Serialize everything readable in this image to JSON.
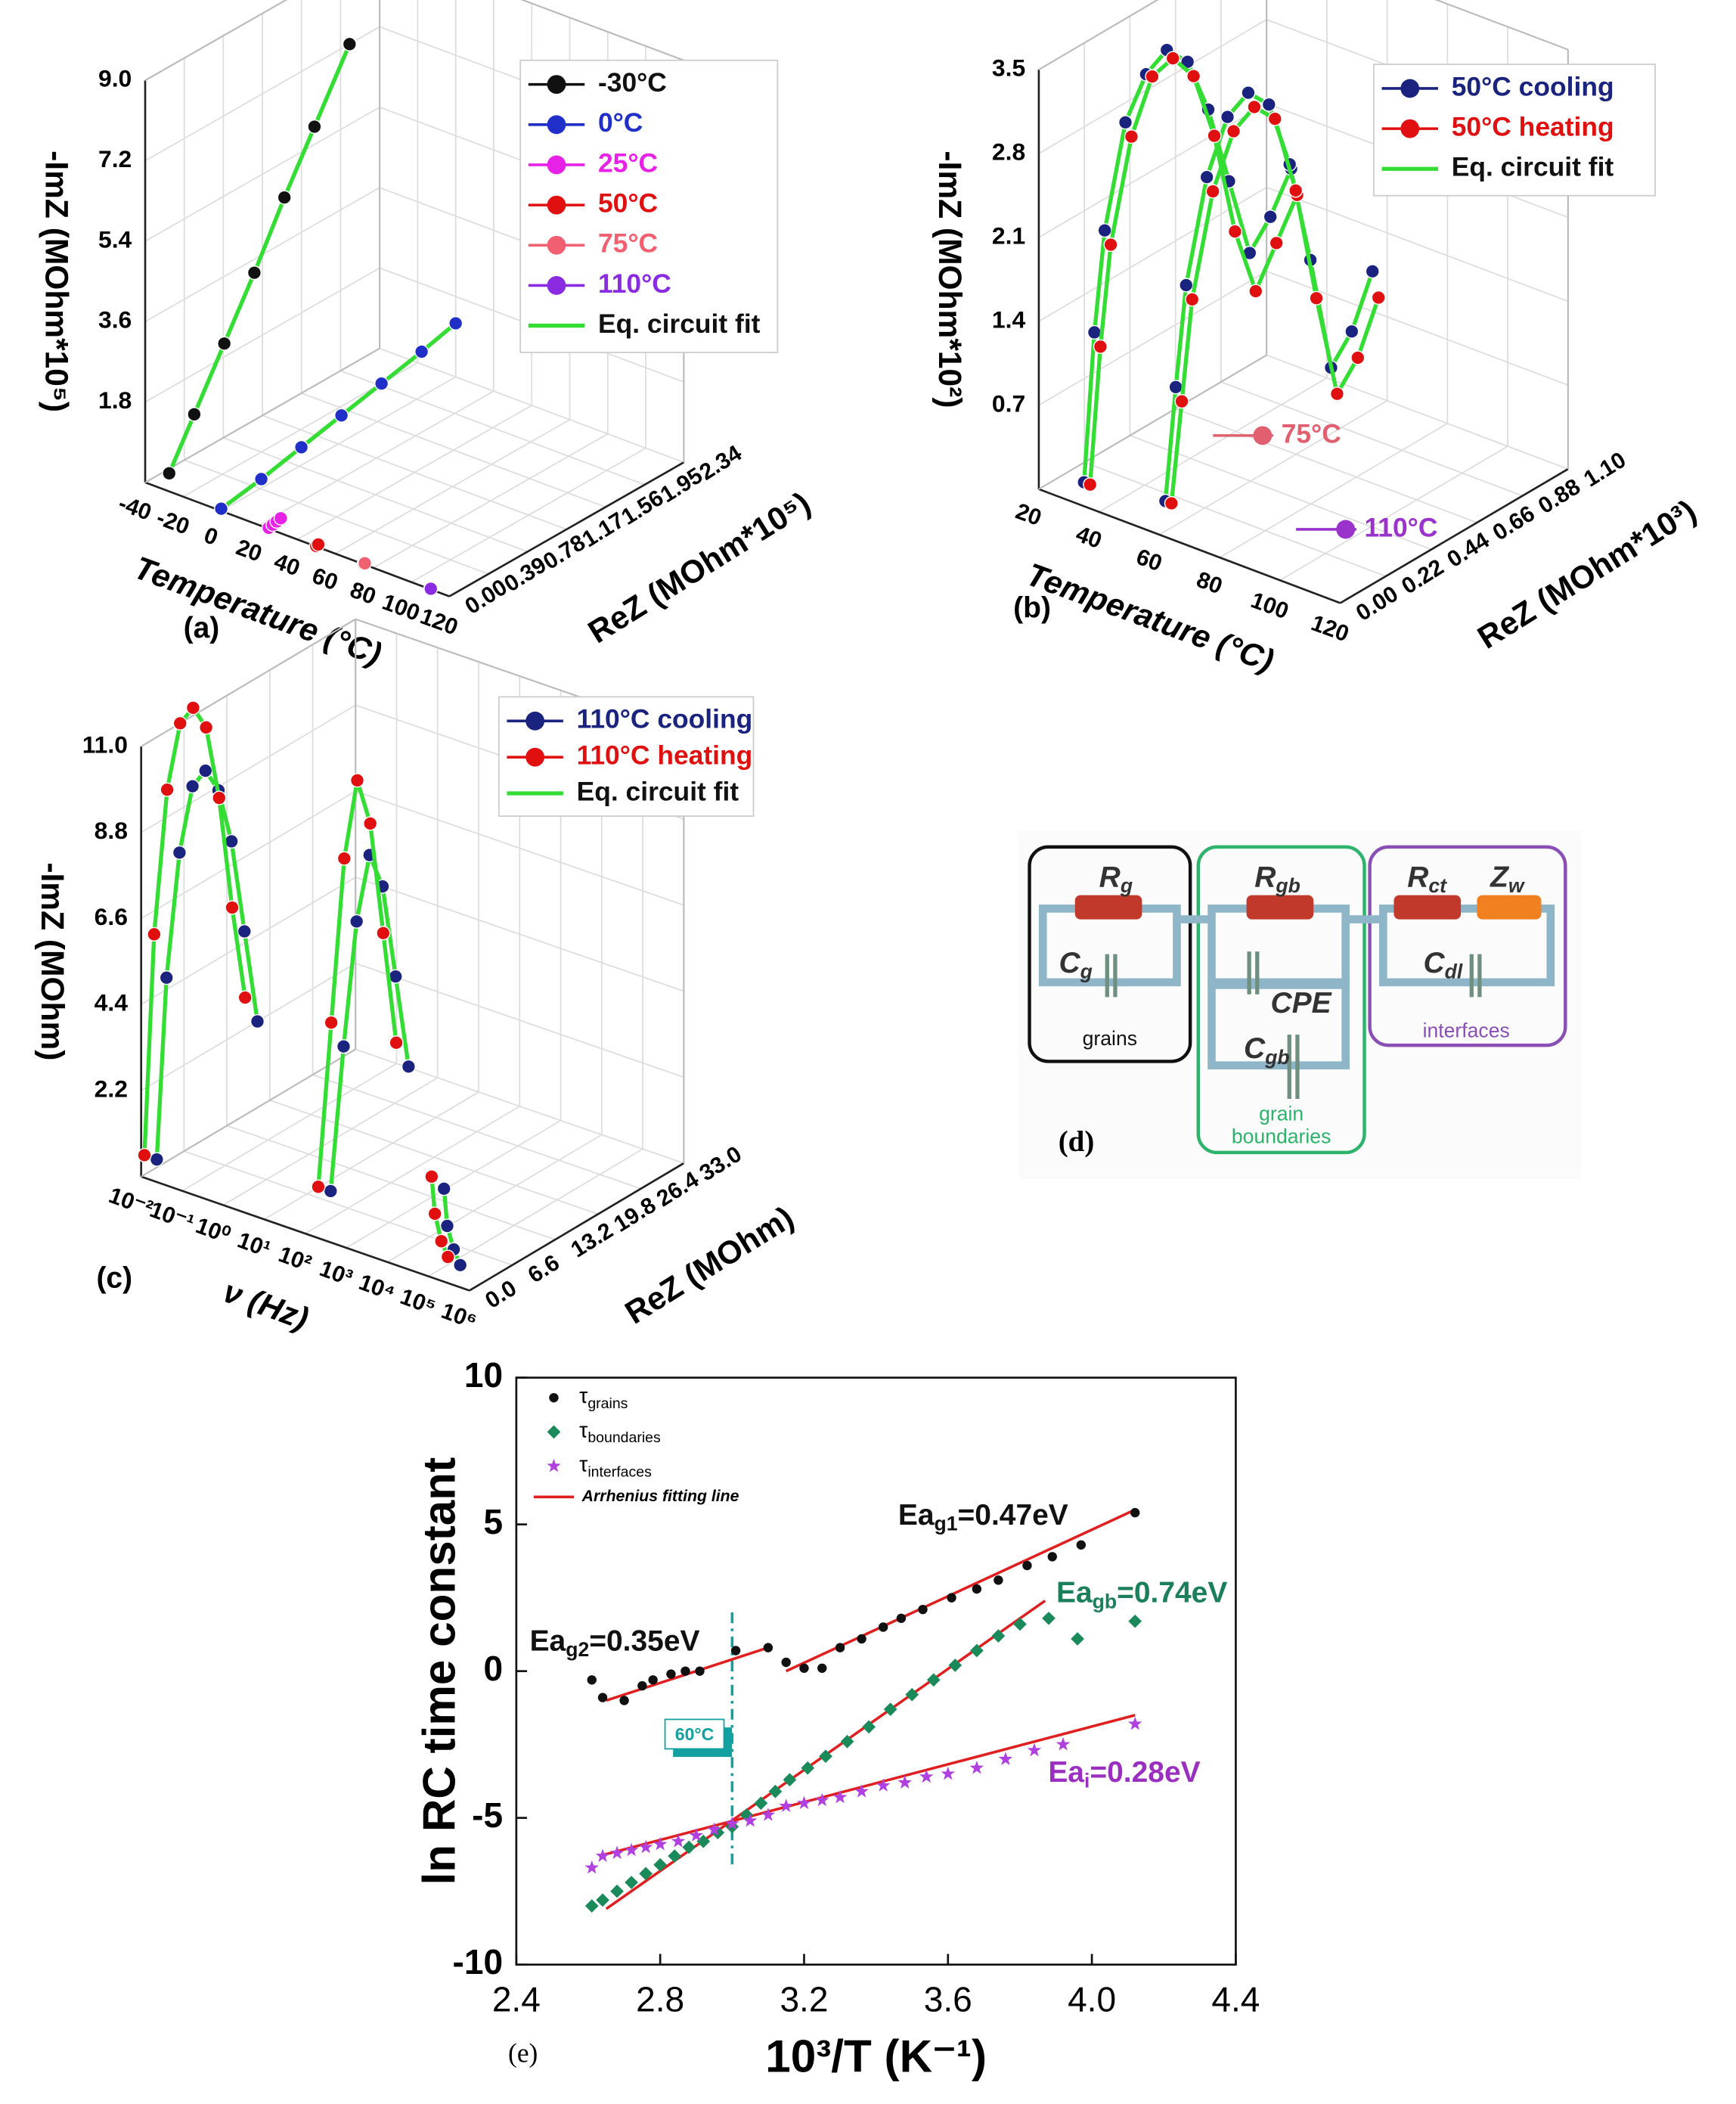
{
  "chart_data": [
    {
      "type": "scatter3d",
      "label": "(a)",
      "xlabel": "Temperature (°C)",
      "ylabel": "ReZ (MOhm*10⁵)",
      "zlabel": "-ImZ (MOhm*10⁵)",
      "xlim": [
        -40,
        120
      ],
      "xticks": [
        -40,
        -20,
        0,
        20,
        40,
        60,
        80,
        100,
        120
      ],
      "ylim": [
        0,
        2.34
      ],
      "yticks": [
        {
          "value": 0,
          "label": "0.00"
        },
        0.39,
        0.78,
        1.17,
        1.56,
        1.95,
        2.34
      ],
      "zlim": [
        0,
        9
      ],
      "zticks": [
        1.8,
        3.6,
        5.4,
        7.2,
        {
          "value": 9,
          "label": "9.0"
        }
      ],
      "series": [
        {
          "name": "-30°C",
          "color": "#111111",
          "x": [
            -30,
            -30,
            -30,
            -30,
            -30,
            -30,
            -30
          ],
          "y": [
            0.05,
            0.3,
            0.6,
            0.9,
            1.2,
            1.5,
            1.85
          ],
          "values": [
            0.3,
            1.3,
            2.5,
            3.7,
            5.0,
            6.2,
            7.6
          ]
        },
        {
          "name": "0°C",
          "color": "#1f2fc8",
          "x": [
            0,
            0,
            0,
            0,
            0,
            0,
            0
          ],
          "y": [
            0,
            0.4,
            0.8,
            1.2,
            1.6,
            2.0,
            2.34
          ],
          "values": [
            0.05,
            0.2,
            0.4,
            0.6,
            0.8,
            1.0,
            1.2
          ]
        },
        {
          "name": "25°C",
          "color": "#e622e6",
          "x": [
            25,
            25,
            25,
            25
          ],
          "y": [
            0,
            0.04,
            0.08,
            0.12
          ],
          "values": [
            0.02,
            0.04,
            0.06,
            0.08
          ]
        },
        {
          "name": "50°C",
          "color": "#e01010",
          "x": [
            50,
            50
          ],
          "y": [
            0,
            0.02
          ],
          "values": [
            0.01,
            0.02
          ]
        },
        {
          "name": "75°C",
          "color": "#f06070",
          "x": [
            75,
            75
          ],
          "y": [
            0,
            0.01
          ],
          "values": [
            0.005,
            0.01
          ]
        },
        {
          "name": "110°C",
          "color": "#8a2be2",
          "x": [
            110,
            110
          ],
          "y": [
            0,
            0.005
          ],
          "values": [
            0.002,
            0.004
          ]
        }
      ],
      "fit": {
        "name": "Eq. circuit fit",
        "color": "#33dd33"
      }
    },
    {
      "type": "scatter3d",
      "label": "(b)",
      "xlabel": "Temperature (°C)",
      "ylabel": "ReZ (MOhm*10³)",
      "zlabel": "-ImZ (MOhm*10²)",
      "xlim": [
        20,
        120
      ],
      "xticks": [
        20,
        40,
        60,
        80,
        100,
        120
      ],
      "ylim": [
        0,
        1.1
      ],
      "yticks": [
        {
          "value": 0,
          "label": "0.00"
        },
        0.22,
        0.44,
        0.66,
        0.88,
        {
          "value": 1.1,
          "label": "1.10"
        }
      ],
      "zlim": [
        0,
        3.5
      ],
      "zticks": [
        0.7,
        1.4,
        2.1,
        2.8,
        3.5
      ],
      "series": [
        {
          "name": "50°C cooling",
          "color": "#1a237e",
          "x": [
            35,
            35,
            35,
            35,
            35,
            35,
            35,
            35,
            35,
            35,
            35,
            35,
            null,
            62,
            62,
            62,
            62,
            62,
            62,
            62,
            62,
            62,
            62,
            62,
            62
          ],
          "y": [
            0,
            0.05,
            0.1,
            0.2,
            0.3,
            0.4,
            0.5,
            0.6,
            0.7,
            0.8,
            0.9,
            1.0,
            null,
            0,
            0.05,
            0.1,
            0.2,
            0.3,
            0.4,
            0.5,
            0.6,
            0.7,
            0.8,
            0.9,
            1.0
          ],
          "values": [
            0.2,
            1.4,
            2.2,
            3.0,
            3.3,
            3.4,
            3.2,
            2.7,
            2.0,
            1.3,
            1.5,
            1.8,
            null,
            0.3,
            1.2,
            2.0,
            2.8,
            3.2,
            3.3,
            3.1,
            2.5,
            1.6,
            0.6,
            0.8,
            1.2
          ]
        },
        {
          "name": "50°C heating",
          "color": "#e01010",
          "x": [
            37,
            37,
            37,
            37,
            37,
            37,
            37,
            37,
            37,
            37,
            37,
            37,
            null,
            64,
            64,
            64,
            64,
            64,
            64,
            64,
            64,
            64,
            64,
            64,
            64
          ],
          "y": [
            0,
            0.05,
            0.1,
            0.2,
            0.3,
            0.4,
            0.5,
            0.6,
            0.7,
            0.8,
            0.9,
            1.0,
            null,
            0,
            0.05,
            0.1,
            0.2,
            0.3,
            0.4,
            0.5,
            0.6,
            0.7,
            0.8,
            0.9,
            1.0
          ],
          "values": [
            0.2,
            1.3,
            2.1,
            2.9,
            3.3,
            3.35,
            3.1,
            2.5,
            1.6,
            1.0,
            1.3,
            1.6,
            null,
            0.3,
            1.1,
            1.9,
            2.7,
            3.1,
            3.2,
            3.0,
            2.3,
            1.3,
            0.4,
            0.6,
            1.0
          ]
        }
      ],
      "fit": {
        "name": "Eq. circuit fit",
        "color": "#33dd33"
      },
      "annotations": [
        {
          "text": "75°C",
          "color": "#e06070"
        },
        {
          "text": "110°C",
          "color": "#9933cc"
        }
      ]
    },
    {
      "type": "scatter3d",
      "label": "(c)",
      "xlabel": "ν (Hz)",
      "ylabel": "ReZ (MOhm)",
      "zlabel": "-ImZ (MOhm)",
      "xscale": "log",
      "xlim": [
        0.01,
        1000000
      ],
      "xticks": [
        {
          "value": 0.01,
          "label": "10⁻²"
        },
        {
          "value": 0.1,
          "label": "10⁻¹"
        },
        {
          "value": 1,
          "label": "10⁰"
        },
        {
          "value": 10,
          "label": "10¹"
        },
        {
          "value": 100,
          "label": "10²"
        },
        {
          "value": 1000,
          "label": "10³"
        },
        {
          "value": 10000,
          "label": "10⁴"
        },
        {
          "value": 100000,
          "label": "10⁵"
        },
        {
          "value": 1000000,
          "label": "10⁶"
        }
      ],
      "ylim": [
        0,
        33
      ],
      "yticks": [
        {
          "value": 0,
          "label": "0.0"
        },
        6.6,
        13.2,
        19.8,
        26.4,
        {
          "value": 33,
          "label": "33.0"
        }
      ],
      "zlim": [
        0,
        11
      ],
      "zticks": [
        2.2,
        4.4,
        6.6,
        8.8,
        {
          "value": 11,
          "label": "11.0"
        }
      ],
      "series": [
        {
          "name": "110°C cooling",
          "color": "#1a237e",
          "x": [
            0.02,
            0.02,
            0.02,
            0.02,
            0.02,
            0.02,
            0.02,
            0.02,
            0.02,
            null,
            200,
            200,
            200,
            200,
            200,
            200,
            200,
            null,
            200000,
            200000,
            200000,
            200000
          ],
          "y": [
            0.5,
            2,
            4,
            6,
            8,
            10,
            12,
            14,
            16,
            null,
            2,
            4,
            6,
            8,
            10,
            12,
            14,
            null,
            0.5,
            1,
            2,
            3
          ],
          "values": [
            0.5,
            5,
            8,
            9.5,
            9.7,
            9,
            7.5,
            5,
            2.5,
            null,
            1,
            4.5,
            7.5,
            9,
            8,
            5.5,
            3,
            null,
            2.3,
            1.3,
            0.6,
            0.1
          ]
        },
        {
          "name": "110°C heating",
          "color": "#e01010",
          "x": [
            0.01,
            0.01,
            0.01,
            0.01,
            0.01,
            0.01,
            0.01,
            0.01,
            0.01,
            null,
            100,
            100,
            100,
            100,
            100,
            100,
            100,
            null,
            100000,
            100000,
            100000,
            100000
          ],
          "y": [
            0.5,
            2,
            4,
            6,
            8,
            10,
            12,
            14,
            16,
            null,
            2,
            4,
            6,
            8,
            10,
            12,
            14,
            null,
            0.5,
            1,
            2,
            3
          ],
          "values": [
            0.5,
            6,
            9.5,
            11,
            11.2,
            10.5,
            8.5,
            5.5,
            3,
            null,
            1,
            5,
            9,
            10.8,
            9.5,
            6.5,
            3.5,
            null,
            2.5,
            1.5,
            0.7,
            0.2
          ]
        }
      ],
      "fit": {
        "name": "Eq. circuit fit",
        "color": "#33dd33"
      }
    },
    {
      "type": "scatter",
      "label": "(e)",
      "xlabel": "10³/T (K⁻¹)",
      "ylabel": "ln RC time constant",
      "xlim": [
        2.4,
        4.4
      ],
      "xticks": [
        2.4,
        2.8,
        3.2,
        3.6,
        {
          "value": 4,
          "label": "4.0"
        },
        4.4
      ],
      "ylim": [
        -10,
        10
      ],
      "yticks": [
        -10,
        -5,
        0,
        5,
        10
      ],
      "series": [
        {
          "name": "τ",
          "sub": "grains",
          "marker": "circle",
          "color": "#111111",
          "x": [
            2.61,
            2.64,
            2.7,
            2.75,
            2.78,
            2.83,
            2.87,
            2.91,
            3.01,
            3.1,
            3.15,
            3.2,
            3.25,
            3.3,
            3.36,
            3.42,
            3.47,
            3.53,
            3.61,
            3.68,
            3.74,
            3.82,
            3.89,
            3.97,
            4.12
          ],
          "values": [
            -0.3,
            -0.9,
            -1.0,
            -0.5,
            -0.3,
            -0.1,
            0.0,
            0.0,
            0.7,
            0.8,
            0.3,
            0.1,
            0.1,
            0.8,
            1.1,
            1.5,
            1.8,
            2.1,
            2.5,
            2.8,
            3.1,
            3.6,
            3.9,
            4.3,
            5.4
          ]
        },
        {
          "name": "τ",
          "sub": "boundaries",
          "marker": "diamond",
          "color": "#1a8a5a",
          "x": [
            2.61,
            2.64,
            2.68,
            2.72,
            2.76,
            2.8,
            2.84,
            2.88,
            2.92,
            2.96,
            3.0,
            3.04,
            3.08,
            3.12,
            3.16,
            3.21,
            3.26,
            3.32,
            3.38,
            3.44,
            3.5,
            3.56,
            3.62,
            3.68,
            3.74,
            3.8,
            3.88,
            3.96,
            4.12
          ],
          "values": [
            -8.0,
            -7.8,
            -7.5,
            -7.2,
            -6.9,
            -6.6,
            -6.3,
            -6.0,
            -5.8,
            -5.5,
            -5.3,
            -4.9,
            -4.5,
            -4.1,
            -3.7,
            -3.3,
            -2.9,
            -2.4,
            -1.9,
            -1.3,
            -0.8,
            -0.3,
            0.2,
            0.7,
            1.2,
            1.6,
            1.8,
            1.1,
            1.7
          ]
        },
        {
          "name": "τ",
          "sub": "interfaces",
          "marker": "star",
          "color": "#b040e0",
          "x": [
            2.61,
            2.64,
            2.68,
            2.72,
            2.76,
            2.8,
            2.85,
            2.9,
            2.95,
            3.0,
            3.05,
            3.1,
            3.15,
            3.2,
            3.25,
            3.3,
            3.36,
            3.42,
            3.48,
            3.54,
            3.6,
            3.68,
            3.76,
            3.84,
            3.92,
            4.12
          ],
          "values": [
            -6.7,
            -6.3,
            -6.2,
            -6.1,
            -6.0,
            -5.9,
            -5.8,
            -5.6,
            -5.4,
            -5.2,
            -5.1,
            -4.9,
            -4.6,
            -4.5,
            -4.4,
            -4.3,
            -4.1,
            -3.9,
            -3.8,
            -3.6,
            -3.5,
            -3.3,
            -3.0,
            -2.7,
            -2.5,
            -1.8
          ]
        }
      ],
      "fit": {
        "name": "Arrhenius fitting line",
        "color": "#e02020",
        "lines": [
          {
            "x": [
              2.65,
              3.1
            ],
            "values": [
              -1.0,
              0.8
            ]
          },
          {
            "x": [
              3.15,
              4.12
            ],
            "values": [
              0.0,
              5.5
            ]
          },
          {
            "x": [
              2.65,
              3.87
            ],
            "values": [
              -8.1,
              2.4
            ]
          },
          {
            "x": [
              2.63,
              4.12
            ],
            "values": [
              -6.3,
              -1.5
            ]
          }
        ]
      },
      "marker_line": {
        "x": 3.0,
        "span": [
          -6.6,
          2
        ],
        "label": "60°C",
        "color": "#12a0a0"
      },
      "annotations": [
        {
          "text": "Ea",
          "sub": "g1",
          "rest": "=0.47eV",
          "color": "#111111"
        },
        {
          "text": "Ea",
          "sub": "g2",
          "rest": "=0.35eV",
          "color": "#111111"
        },
        {
          "text": "Ea",
          "sub": "gb",
          "rest": "=0.74eV",
          "color": "#1a7f5a"
        },
        {
          "text": "Ea",
          "sub": "i",
          "rest": "=0.28eV",
          "color": "#9b30c0"
        }
      ]
    }
  ],
  "diagram": {
    "label": "(d)",
    "components": [
      {
        "main": "R",
        "sub": "g"
      },
      {
        "main": "R",
        "sub": "gb"
      },
      {
        "main": "R",
        "sub": "ct"
      },
      {
        "main": "Z",
        "sub": "w"
      },
      {
        "main": "C",
        "sub": "g"
      },
      {
        "main": "CPE"
      },
      {
        "main": "C",
        "sub": "gb"
      },
      {
        "main": "C",
        "sub": "dl"
      }
    ],
    "groups": [
      [
        "grains"
      ],
      [
        "grain",
        "boundaries"
      ],
      [
        "interfaces"
      ]
    ]
  }
}
